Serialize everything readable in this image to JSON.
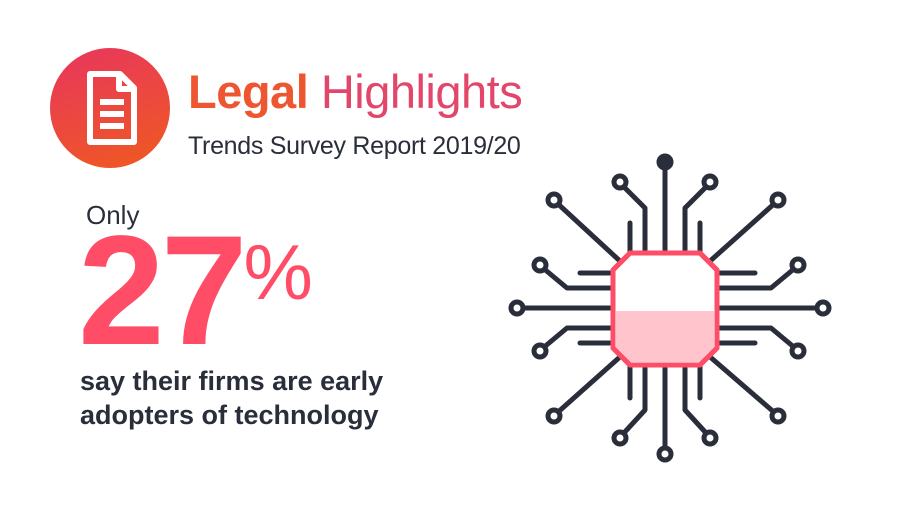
{
  "header": {
    "title_bold": "Legal",
    "title_light": "Highlights",
    "subtitle": "Trends Survey Report 2019/20",
    "logo_icon": "document-icon",
    "colors": {
      "brand_gradient_start": "#e8355f",
      "brand_gradient_end": "#ef5a1e",
      "title_bold": "#ee5632",
      "title_light": "#e2466a"
    }
  },
  "stat": {
    "prefix": "Only",
    "number": "27",
    "unit": "%",
    "caption": "say their firms are early adopters of technology",
    "color": "#ff4d68"
  },
  "illustration": {
    "icon": "circuit-chip-icon",
    "colors": {
      "lines": "#2a2e3b",
      "chip_border": "#ff4d68",
      "chip_fill": "#ffc4cc"
    }
  }
}
